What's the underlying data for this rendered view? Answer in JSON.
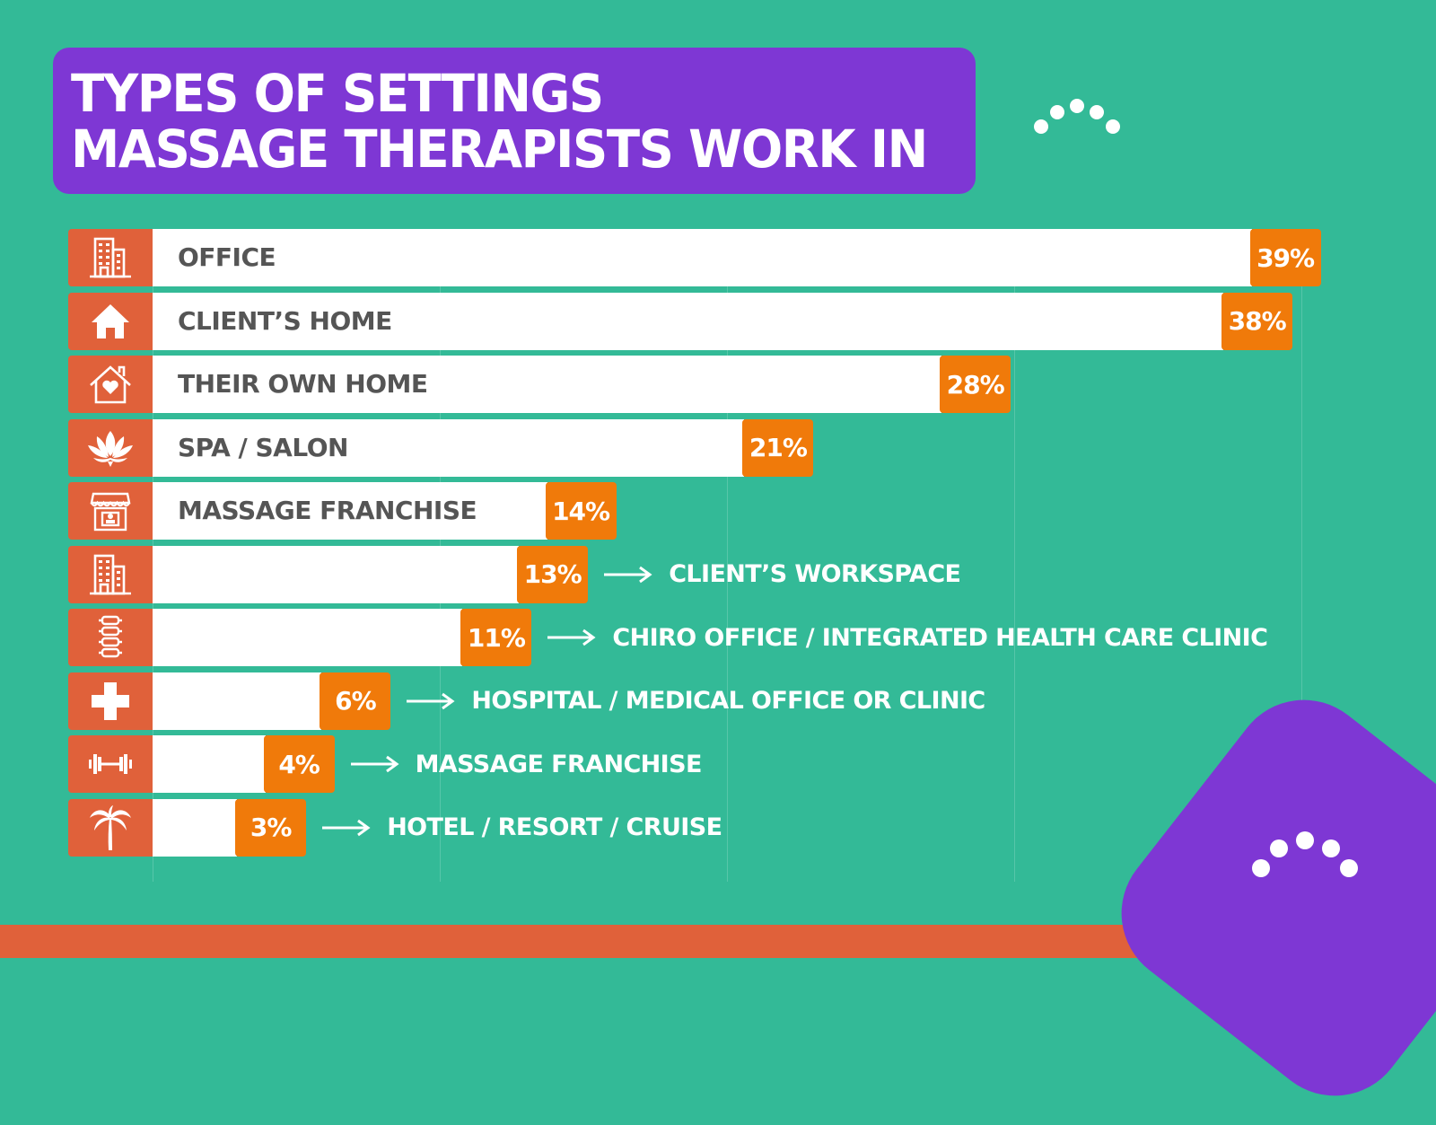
{
  "title": {
    "line1": "TYPES OF SETTINGS",
    "line2": "MASSAGE THERAPISTS WORK IN"
  },
  "colors": {
    "background": "#33BA97",
    "title_bg": "#7E37D4",
    "icon_bg": "#E0613A",
    "badge": "#F07A0A",
    "bar": "#FFFFFF",
    "label_text": "#555555",
    "bottom_band": "#E0613A"
  },
  "chart_data": {
    "type": "bar",
    "orientation": "horizontal",
    "title": "TYPES OF SETTINGS MASSAGE THERAPISTS WORK IN",
    "categories": [
      "OFFICE",
      "CLIENT’S HOME",
      "THEIR OWN HOME",
      "SPA / SALON",
      "MASSAGE FRANCHISE",
      "CLIENT’S WORKSPACE",
      "CHIRO OFFICE / INTEGRATED HEALTH CARE CLINIC",
      "HOSPITAL / MEDICAL OFFICE OR CLINIC",
      "MASSAGE FRANCHISE",
      "HOTEL / RESORT / CRUISE"
    ],
    "values": [
      39,
      38,
      28,
      21,
      14,
      13,
      11,
      6,
      4,
      3
    ],
    "unit": "%",
    "xlabel": "",
    "ylabel": "",
    "xlim": [
      0,
      40
    ],
    "grid": true,
    "legend": "none"
  },
  "rows": [
    {
      "label": "OFFICE",
      "value_label": "39%",
      "value": 39,
      "icon": "office-building-icon",
      "label_inside": true
    },
    {
      "label": "CLIENT’S HOME",
      "value_label": "38%",
      "value": 38,
      "icon": "home-icon",
      "label_inside": true
    },
    {
      "label": "THEIR OWN HOME",
      "value_label": "28%",
      "value": 28,
      "icon": "heart-home-icon",
      "label_inside": true
    },
    {
      "label": "SPA / SALON",
      "value_label": "21%",
      "value": 21,
      "icon": "lotus-icon",
      "label_inside": true
    },
    {
      "label": "MASSAGE FRANCHISE",
      "value_label": "14%",
      "value": 14,
      "icon": "storefront-icon",
      "label_inside": true
    },
    {
      "label": "CLIENT’S WORKSPACE",
      "value_label": "13%",
      "value": 13,
      "icon": "office-building-icon",
      "label_inside": false
    },
    {
      "label": "CHIRO OFFICE / INTEGRATED HEALTH CARE CLINIC",
      "value_label": "11%",
      "value": 11,
      "icon": "spine-icon",
      "label_inside": false
    },
    {
      "label": "HOSPITAL / MEDICAL OFFICE OR CLINIC",
      "value_label": "6%",
      "value": 6,
      "icon": "medical-cross-icon",
      "label_inside": false
    },
    {
      "label": "MASSAGE FRANCHISE",
      "value_label": "4%",
      "value": 4,
      "icon": "dumbbell-icon",
      "label_inside": false
    },
    {
      "label": "HOTEL / RESORT / CRUISE",
      "value_label": "3%",
      "value": 3,
      "icon": "palm-tree-icon",
      "label_inside": false
    }
  ]
}
